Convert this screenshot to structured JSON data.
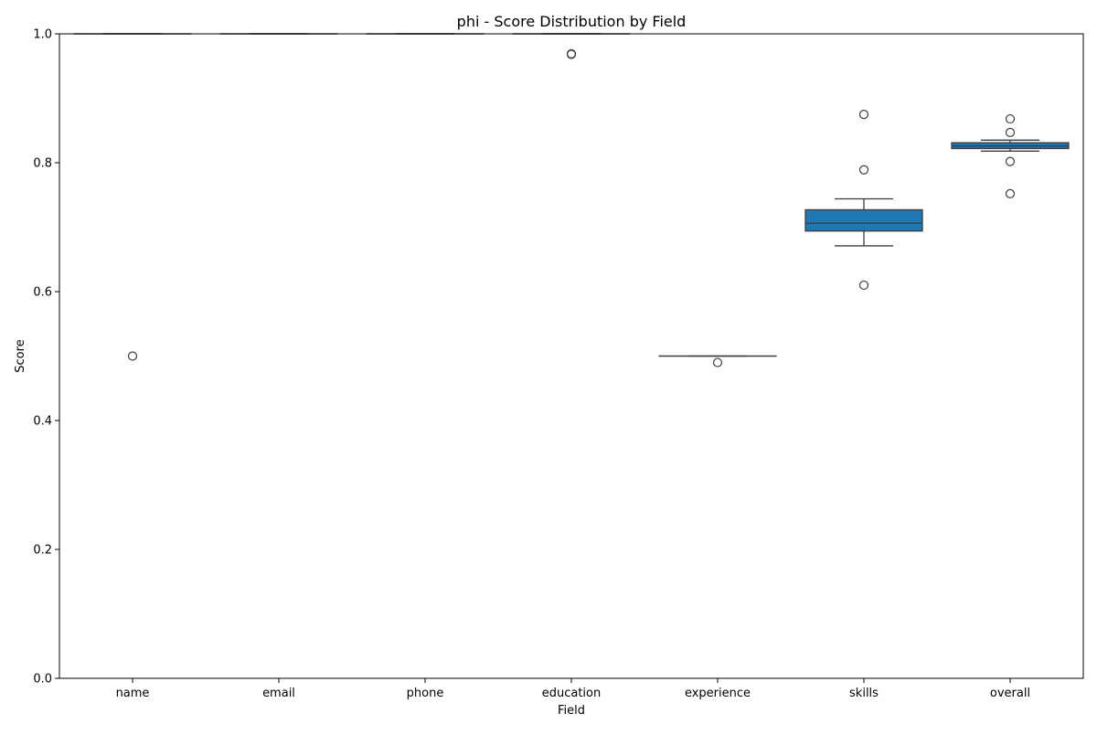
{
  "chart_data": {
    "type": "box",
    "title": "phi - Score Distribution by Field",
    "xlabel": "Field",
    "ylabel": "Score",
    "ylim": [
      0.0,
      1.0
    ],
    "yticks": [
      0.0,
      0.2,
      0.4,
      0.6,
      0.8,
      1.0
    ],
    "ytick_labels": [
      "0.0",
      "0.2",
      "0.4",
      "0.6",
      "0.8",
      "1.0"
    ],
    "grid": false,
    "box_color": "#1f77b4",
    "line_color": "#3d3d3d",
    "categories": [
      "name",
      "email",
      "phone",
      "education",
      "experience",
      "skills",
      "overall"
    ],
    "boxes": [
      {
        "field": "name",
        "whislo": 1.0,
        "q1": 1.0,
        "med": 1.0,
        "q3": 1.0,
        "whishi": 1.0,
        "fliers": [
          0.5
        ]
      },
      {
        "field": "email",
        "whislo": 1.0,
        "q1": 1.0,
        "med": 1.0,
        "q3": 1.0,
        "whishi": 1.0,
        "fliers": []
      },
      {
        "field": "phone",
        "whislo": 1.0,
        "q1": 1.0,
        "med": 1.0,
        "q3": 1.0,
        "whishi": 1.0,
        "fliers": []
      },
      {
        "field": "education",
        "whislo": 1.0,
        "q1": 1.0,
        "med": 1.0,
        "q3": 1.0,
        "whishi": 1.0,
        "fliers": [
          0.968,
          0.969
        ]
      },
      {
        "field": "experience",
        "whislo": 0.5,
        "q1": 0.5,
        "med": 0.5,
        "q3": 0.5,
        "whishi": 0.5,
        "fliers": [
          0.49
        ]
      },
      {
        "field": "skills",
        "whislo": 0.671,
        "q1": 0.694,
        "med": 0.706,
        "q3": 0.727,
        "whishi": 0.744,
        "fliers": [
          0.875,
          0.789,
          0.61
        ]
      },
      {
        "field": "overall",
        "whislo": 0.818,
        "q1": 0.822,
        "med": 0.826,
        "q3": 0.831,
        "whishi": 0.835,
        "fliers": [
          0.868,
          0.847,
          0.802,
          0.752
        ]
      }
    ]
  }
}
